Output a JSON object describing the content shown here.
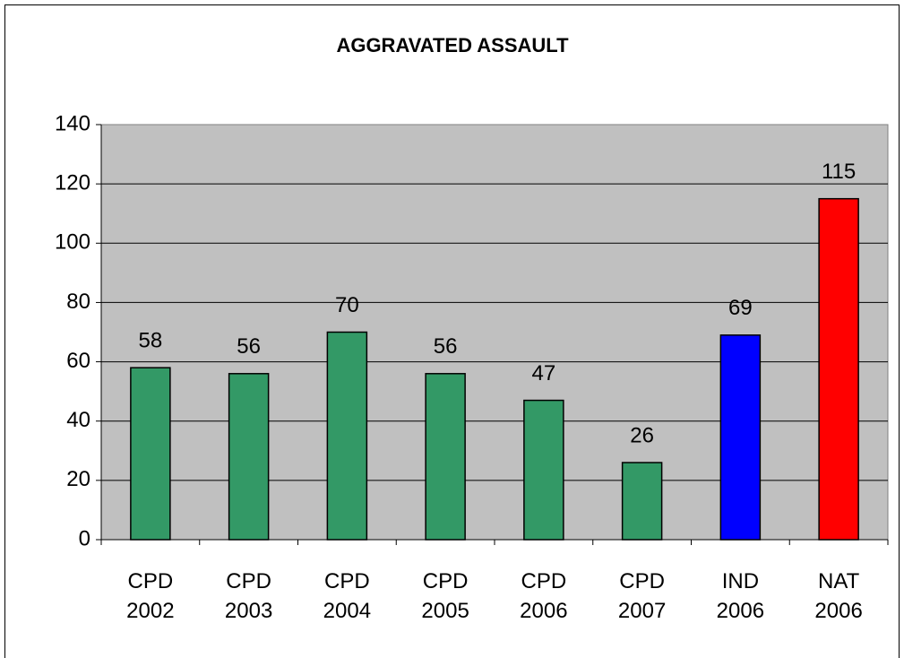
{
  "chart_data": {
    "type": "bar",
    "title": "AGGRAVATED ASSAULT",
    "categories": [
      "CPD 2002",
      "CPD 2003",
      "CPD 2004",
      "CPD 2005",
      "CPD 2006",
      "CPD 2007",
      "IND 2006",
      "NAT 2006"
    ],
    "values": [
      58,
      56,
      70,
      56,
      47,
      26,
      69,
      115
    ],
    "colors": [
      "#339966",
      "#339966",
      "#339966",
      "#339966",
      "#339966",
      "#339966",
      "#0000ff",
      "#ff0000"
    ],
    "ylim": [
      0,
      140
    ],
    "yticks": [
      0,
      20,
      40,
      60,
      80,
      100,
      120,
      140
    ],
    "grid": true
  }
}
